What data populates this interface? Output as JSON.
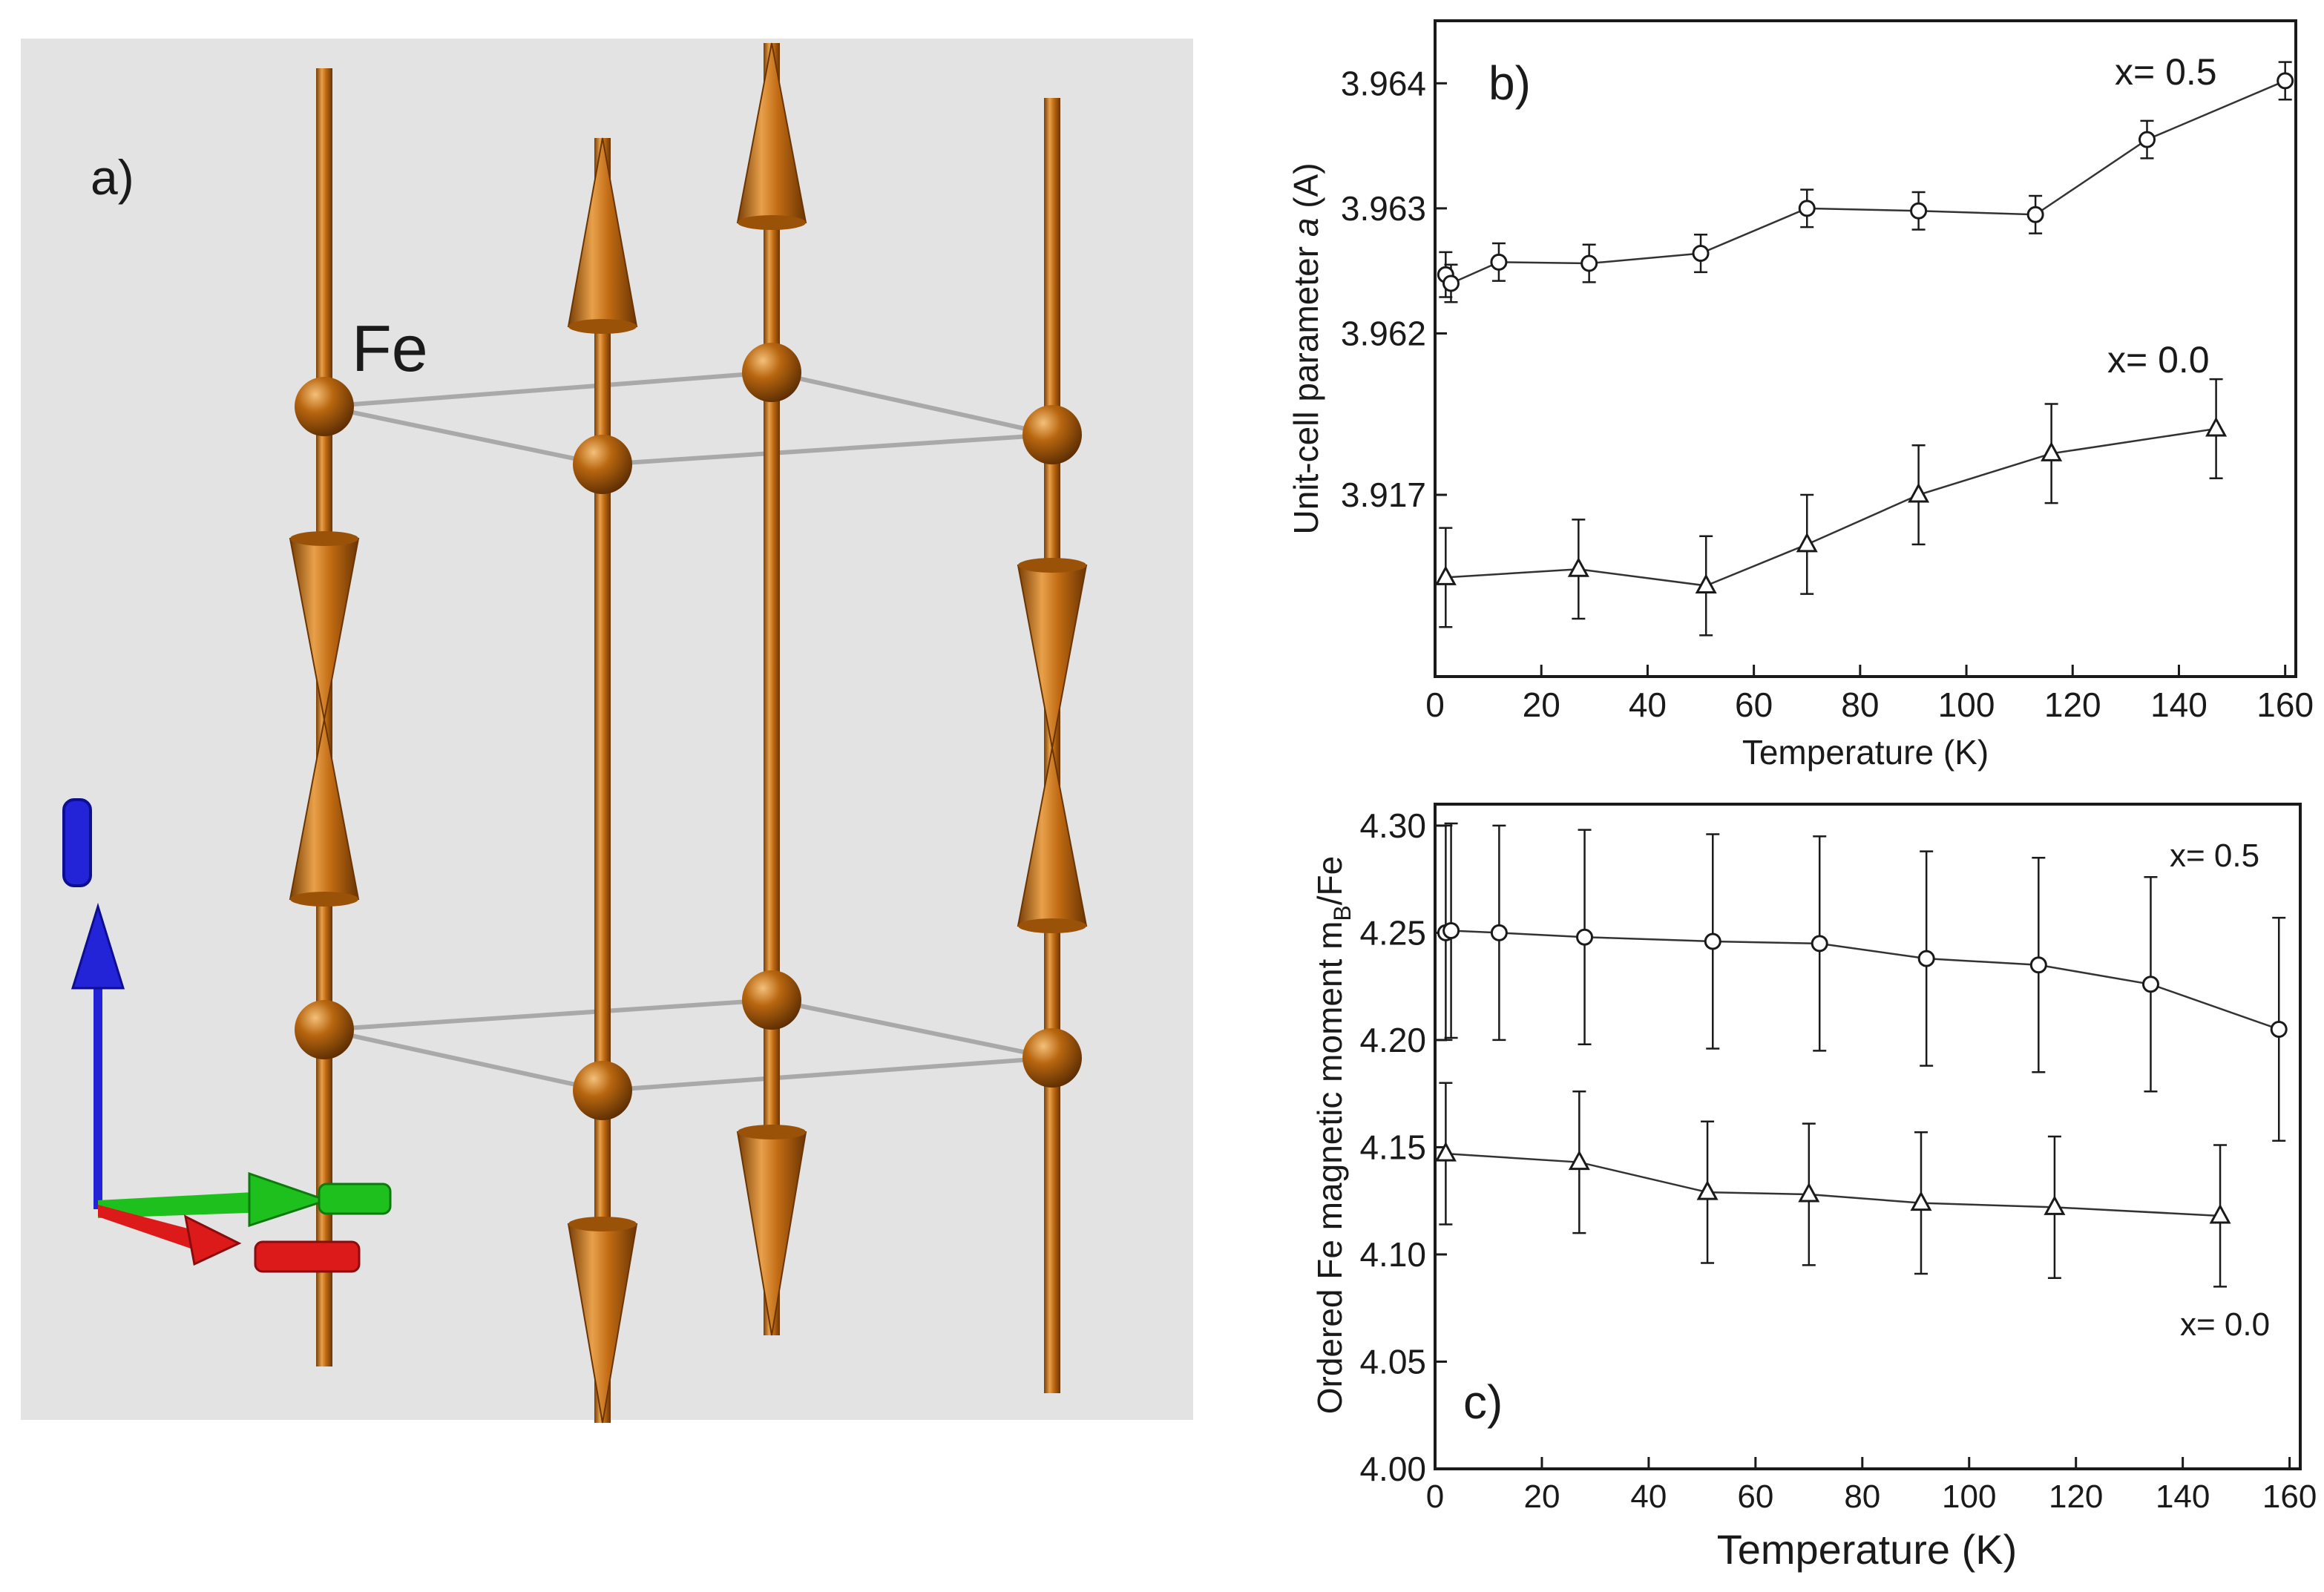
{
  "panel_a": {
    "label": "a)",
    "atom_label": "Fe",
    "colors": {
      "background": "#e3e3e3",
      "spin": "#c06a12",
      "bond": "#a9a9a9",
      "axis_c": "#2323d8",
      "axis_b": "#1ec01e",
      "axis_a": "#dd1a1a"
    }
  },
  "chart_data": [
    {
      "id": "b",
      "type": "line",
      "panel_label": "b)",
      "xlabel": "Temperature (K)",
      "ylabel_prefix": "Unit-cell parameter ",
      "ylabel_italic": "a",
      "ylabel_suffix": " (A)",
      "xlim": [
        0,
        162
      ],
      "xticks": [
        0,
        20,
        40,
        60,
        80,
        100,
        120,
        140,
        160
      ],
      "broken_axis": true,
      "upper_ylim": [
        3.9617,
        3.9645
      ],
      "upper_yticks": [
        "3.962",
        "3.963",
        "3.964"
      ],
      "lower_ylim": [
        3.9148,
        3.9185
      ],
      "lower_yticks": [
        "3.917"
      ],
      "series": [
        {
          "name": "x= 0.5",
          "marker": "circle",
          "segment": "upper",
          "x": [
            2,
            3,
            12,
            29,
            50,
            70,
            91,
            113,
            134,
            160
          ],
          "y": [
            3.96247,
            3.9624,
            3.96257,
            3.96256,
            3.96264,
            3.963,
            3.96298,
            3.96295,
            3.96355,
            3.96402
          ],
          "err": [
            0.00018,
            0.00015,
            0.00015,
            0.00015,
            0.00015,
            0.00015,
            0.00015,
            0.00015,
            0.00015,
            0.00015
          ]
        },
        {
          "name": "x= 0.0",
          "marker": "triangle",
          "segment": "lower",
          "x": [
            2,
            27,
            51,
            70,
            91,
            116,
            147
          ],
          "y": [
            3.916,
            3.9161,
            3.9159,
            3.9164,
            3.917,
            3.9175,
            3.9178
          ],
          "err": [
            0.0006,
            0.0006,
            0.0006,
            0.0006,
            0.0006,
            0.0006,
            0.0006
          ]
        }
      ]
    },
    {
      "id": "c",
      "type": "line",
      "panel_label": "c)",
      "xlabel": "Temperature (K)",
      "ylabel_main": "Ordered Fe magnetic moment m",
      "ylabel_sub": "B",
      "ylabel_tail": "/Fe",
      "xlim": [
        0,
        162
      ],
      "xticks": [
        0,
        20,
        40,
        60,
        80,
        100,
        120,
        140,
        160
      ],
      "ylim": [
        4.0,
        4.31
      ],
      "yticks": [
        4.0,
        4.05,
        4.1,
        4.15,
        4.2,
        4.25,
        4.3
      ],
      "ytick_labels": [
        "4.00",
        "4.05",
        "4.10",
        "4.15",
        "4.20",
        "4.25",
        "4.30"
      ],
      "series": [
        {
          "name": "x= 0.5",
          "marker": "circle",
          "x": [
            2,
            3,
            12,
            28,
            52,
            72,
            92,
            113,
            134,
            158
          ],
          "y": [
            4.25,
            4.251,
            4.25,
            4.248,
            4.246,
            4.245,
            4.238,
            4.235,
            4.226,
            4.205
          ],
          "err": [
            0.05,
            0.05,
            0.05,
            0.05,
            0.05,
            0.05,
            0.05,
            0.05,
            0.05,
            0.052
          ]
        },
        {
          "name": "x= 0.0",
          "marker": "triangle",
          "x": [
            2,
            27,
            51,
            70,
            91,
            116,
            147
          ],
          "y": [
            4.147,
            4.143,
            4.129,
            4.128,
            4.124,
            4.122,
            4.118
          ],
          "err": [
            0.033,
            0.033,
            0.033,
            0.033,
            0.033,
            0.033,
            0.033
          ]
        }
      ]
    }
  ]
}
